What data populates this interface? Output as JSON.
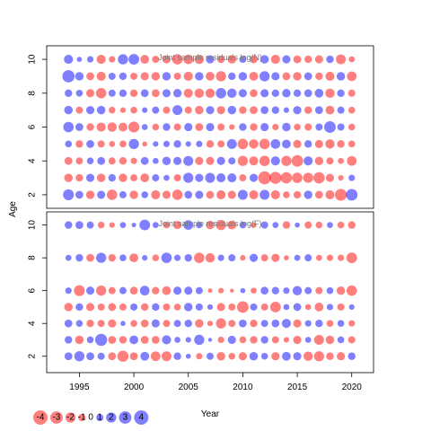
{
  "chart_data": {
    "type": "scatter",
    "subtype": "bubble",
    "xlabel": "Year",
    "ylabel": "Age",
    "x_ticks": [
      1995,
      2000,
      2005,
      2010,
      2015,
      2020
    ],
    "years": [
      1994,
      1995,
      1996,
      1997,
      1998,
      1999,
      2000,
      2001,
      2002,
      2003,
      2004,
      2005,
      2006,
      2007,
      2008,
      2009,
      2010,
      2011,
      2012,
      2013,
      2014,
      2015,
      2016,
      2017,
      2018,
      2019,
      2020
    ],
    "xlim": [
      1992.0,
      2022.0
    ],
    "colors": {
      "positive": "#0000ff",
      "negative": "#ff0000"
    },
    "legend": {
      "placement": "bottom-left",
      "values": [
        -4,
        -3,
        -2,
        -1,
        0,
        1,
        2,
        3,
        4
      ],
      "labels": [
        "-4",
        "-3",
        "-2",
        "-1",
        "0",
        "1",
        "2",
        "3",
        "4"
      ]
    },
    "panels": [
      {
        "title": "Joint sample residuals log(N)",
        "ages": [
          2,
          3,
          4,
          5,
          6,
          7,
          8,
          9,
          10
        ],
        "y_ticks": [
          2,
          4,
          6,
          8,
          10
        ],
        "ylim": [
          1.2,
          10.8
        ],
        "residuals": [
          [
            2.3,
            1.2,
            -1.4,
            1.3,
            -2.1,
            1.0,
            -1.4,
            0.9,
            -1.6,
            -1.3,
            -2.1,
            1.2,
            1.3,
            -1.2,
            -1.6,
            -1.3,
            1.9,
            -1.6,
            1.9,
            -1.6,
            -0.9,
            -1.1,
            1.4,
            -1.2,
            -1.6,
            -2.7,
            2.6
          ],
          [
            -1.4,
            -1.1,
            1.3,
            -1.4,
            1.1,
            -1.4,
            -1.0,
            -1.5,
            1.0,
            0.7,
            -1.0,
            2.0,
            1.3,
            1.9,
            1.6,
            1.6,
            -1.0,
            1.3,
            -3.2,
            -2.8,
            -2.5,
            -2.1,
            -2.0,
            -2.5,
            -1.3,
            -0.6,
            0.8
          ],
          [
            -1.2,
            -1.0,
            0.9,
            1.2,
            -1.0,
            -1.1,
            -0.8,
            1.2,
            0.7,
            1.4,
            1.3,
            1.9,
            -1.3,
            -1.3,
            1.3,
            1.0,
            -2.0,
            -1.6,
            -2.1,
            1.6,
            -2.0,
            -2.6,
            1.6,
            -1.4,
            -1.0,
            -0.7,
            -1.8
          ],
          [
            0.9,
            -1.1,
            1.2,
            -1.0,
            -0.7,
            -0.9,
            2.0,
            -0.5,
            0.6,
            0.8,
            1.1,
            0.6,
            0.8,
            -1.1,
            -1.0,
            1.9,
            -2.1,
            -1.7,
            -2.1,
            1.8,
            1.5,
            -1.3,
            1.1,
            -1.3,
            -1.7,
            -1.1,
            -0.9
          ],
          [
            2.1,
            1.2,
            -1.1,
            -1.6,
            -1.7,
            -1.5,
            -2.3,
            0.7,
            -0.9,
            1.1,
            -1.0,
            1.3,
            -1.2,
            1.3,
            -1.0,
            -0.6,
            1.1,
            -1.1,
            1.3,
            -0.8,
            1.4,
            -0.9,
            -1.0,
            1.0,
            2.6,
            1.0,
            -0.9
          ],
          [
            1.4,
            -1.0,
            1.3,
            1.4,
            -0.9,
            -0.6,
            -0.9,
            0.6,
            1.0,
            -1.0,
            1.9,
            -1.0,
            -1.4,
            1.3,
            -1.3,
            1.4,
            -1.1,
            -1.2,
            1.2,
            1.1,
            0.6,
            1.3,
            -1.1,
            1.2,
            -1.5,
            1.0,
            -0.9
          ],
          [
            1.1,
            0.9,
            -1.3,
            -2.1,
            1.0,
            1.1,
            -1.1,
            1.2,
            -1.2,
            1.3,
            1.4,
            -1.6,
            -1.7,
            -1.7,
            2.1,
            1.7,
            1.3,
            -1.2,
            1.3,
            1.1,
            1.4,
            1.1,
            1.2,
            1.5,
            -1.7,
            1.1,
            -1.0
          ],
          [
            2.9,
            1.4,
            -1.2,
            -1.6,
            1.0,
            1.1,
            -1.0,
            -1.3,
            -1.4,
            1.4,
            -1.0,
            -1.6,
            1.4,
            -1.5,
            -2.0,
            1.1,
            1.4,
            -1.5,
            2.0,
            1.3,
            -1.2,
            -1.4,
            1.2,
            -1.1,
            -1.6,
            1.4,
            -1.8
          ],
          [
            1.6,
            0.5,
            0.8,
            -1.6,
            -0.8,
            2.0,
            2.2,
            -1.5,
            -1.0,
            -1.3,
            -2.1,
            -1.8,
            -1.7,
            1.3,
            -1.1,
            -1.4,
            1.0,
            -1.2,
            1.4,
            -1.6,
            1.3,
            -1.2,
            -1.1,
            -1.3,
            1.1,
            -1.9,
            -0.7
          ]
        ]
      },
      {
        "title": "Joint sample residuals log(F)",
        "ages": [
          2,
          3,
          4,
          5,
          6,
          8,
          10
        ],
        "y_ticks": [
          2,
          4,
          6,
          8,
          10
        ],
        "ylim": [
          1.0,
          10.8
        ],
        "residuals": [
          [
            1.2,
            2.0,
            1.2,
            1.0,
            -1.2,
            -2.4,
            -1.2,
            1.5,
            -1.8,
            -1.9,
            1.1,
            0.5,
            -0.8,
            1.0,
            -1.4,
            -0.9,
            -1.3,
            1.4,
            0.9,
            -1.3,
            1.5,
            1.3,
            -1.7,
            -2.0,
            -1.1,
            -1.3,
            1.1
          ],
          [
            1.1,
            -1.4,
            0.9,
            2.8,
            -1.2,
            -1.1,
            1.5,
            -1.2,
            -1.2,
            1.6,
            0.7,
            0.6,
            2.0,
            0.3,
            -0.8,
            1.3,
            -0.9,
            -1.1,
            1.1,
            -1.0,
            -0.6,
            -1.3,
            0.7,
            -1.9,
            -1.4,
            0.9,
            -1.0
          ],
          [
            1.2,
            0.9,
            -1.1,
            -1.0,
            -1.3,
            0.5,
            -0.9,
            -1.2,
            1.3,
            -1.0,
            1.0,
            1.1,
            -1.4,
            -0.6,
            -2.0,
            -1.0,
            1.2,
            -1.1,
            1.0,
            1.2,
            1.6,
            -1.3,
            0.8,
            1.1,
            -0.9,
            0.9,
            -0.8
          ],
          [
            -1.4,
            1.1,
            -1.3,
            -1.0,
            -1.2,
            -1.0,
            1.0,
            -1.1,
            1.1,
            -1.0,
            -0.9,
            1.4,
            1.0,
            0.6,
            -1.3,
            -1.0,
            -2.6,
            1.0,
            -1.0,
            -2.2,
            0.7,
            1.2,
            -0.7,
            -1.5,
            0.8,
            -1.0,
            0.6
          ],
          [
            0.8,
            -2.3,
            1.3,
            -2.0,
            -1.0,
            1.0,
            -1.2,
            1.8,
            -1.1,
            -1.5,
            1.3,
            1.3,
            1.0,
            -0.4,
            -0.6,
            -0.3,
            0.5,
            -0.7,
            1.2,
            1.1,
            0.8,
            1.7,
            1.0,
            -1.0,
            0.9,
            -1.4,
            -2.1
          ],
          [
            0.7,
            1.1,
            -1.2,
            2.0,
            -1.1,
            0.9,
            -1.5,
            0.6,
            -0.9,
            2.1,
            0.8,
            1.1,
            -2.1,
            -1.7,
            0.8,
            1.0,
            -0.6,
            1.3,
            -1.0,
            -1.3,
            -0.5,
            0.7,
            1.0,
            -0.7,
            -0.8,
            -0.8,
            -2.2
          ],
          [
            1.1,
            1.2,
            1.0,
            -0.9,
            -0.6,
            0.7,
            0.4,
            2.2,
            0.7,
            -0.9,
            -1.3,
            1.8,
            0.8,
            -1.4,
            -2.0,
            -1.5,
            0.9,
            -0.6,
            1.0,
            0.7,
            -1.1,
            0.5,
            -1.0,
            -0.9,
            0.7,
            -0.9,
            -1.1
          ]
        ]
      }
    ]
  }
}
